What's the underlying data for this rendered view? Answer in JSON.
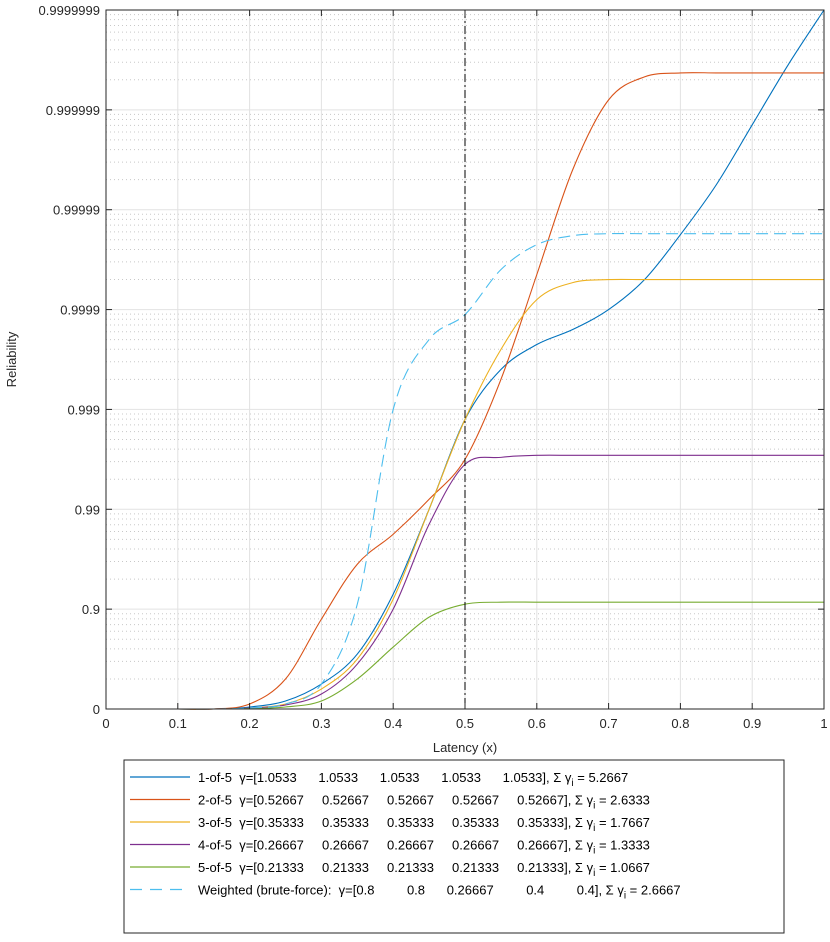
{
  "chart_data": {
    "type": "line",
    "title": "",
    "xlabel": "Latency (x)",
    "ylabel": "Reliability",
    "xlim": [
      0,
      1
    ],
    "y_scale": "nines (-log10(1 - reliability))",
    "ylim_nines": [
      0,
      7
    ],
    "x_ticks": [
      "0",
      "0.1",
      "0.2",
      "0.3",
      "0.4",
      "0.5",
      "0.6",
      "0.7",
      "0.8",
      "0.9",
      "1"
    ],
    "y_ticks": [
      {
        "nines": 0,
        "label": "0"
      },
      {
        "nines": 1,
        "label": "0.9"
      },
      {
        "nines": 2,
        "label": "0.99"
      },
      {
        "nines": 3,
        "label": "0.999"
      },
      {
        "nines": 4,
        "label": "0.9999"
      },
      {
        "nines": 5,
        "label": "0.99999"
      },
      {
        "nines": 6,
        "label": "0.999999"
      },
      {
        "nines": 7,
        "label": "0.9999999"
      }
    ],
    "grid": true,
    "vertical_line": {
      "x": 0.5,
      "style": "dash-dot",
      "color": "#000000"
    },
    "legend_position": "below",
    "x": [
      0,
      0.05,
      0.1,
      0.15,
      0.2,
      0.25,
      0.3,
      0.35,
      0.4,
      0.45,
      0.5,
      0.55,
      0.6,
      0.65,
      0.7,
      0.75,
      0.8,
      0.85,
      0.9,
      0.95,
      1.0
    ],
    "series": [
      {
        "name": "1-of-5",
        "legend_gamma": "γ=[1.0533      1.0533      1.0533      1.0533      1.0533], Σ γ",
        "legend_sum": " = 5.2667",
        "color": "#0072BD",
        "dash": false,
        "values_nines": [
          0,
          0,
          0,
          0,
          0.02,
          0.08,
          0.25,
          0.55,
          1.15,
          2.0,
          2.9,
          3.4,
          3.65,
          3.8,
          4.0,
          4.3,
          4.75,
          5.25,
          5.85,
          6.45,
          7.0
        ]
      },
      {
        "name": "2-of-5",
        "legend_gamma": "γ=[0.52667     0.52667     0.52667     0.52667     0.52667], Σ γ",
        "legend_sum": " = 2.6333",
        "color": "#D95319",
        "dash": false,
        "values_nines": [
          0,
          0,
          0,
          0,
          0.05,
          0.3,
          0.9,
          1.45,
          1.75,
          2.1,
          2.5,
          3.3,
          4.35,
          5.4,
          6.1,
          6.33,
          6.37,
          6.37,
          6.37,
          6.37,
          6.37
        ]
      },
      {
        "name": "3-of-5",
        "legend_gamma": "γ=[0.35333     0.35333     0.35333     0.35333     0.35333], Σ γ",
        "legend_sum": " = 1.7667",
        "color": "#EDB120",
        "dash": false,
        "values_nines": [
          0,
          0,
          0,
          0,
          0.01,
          0.05,
          0.2,
          0.5,
          1.1,
          2.0,
          2.9,
          3.6,
          4.1,
          4.27,
          4.3,
          4.3,
          4.3,
          4.3,
          4.3,
          4.3,
          4.3
        ]
      },
      {
        "name": "4-of-5",
        "legend_gamma": "γ=[0.26667     0.26667     0.26667     0.26667     0.26667], Σ γ",
        "legend_sum": " = 1.3333",
        "color": "#7E2F8E",
        "dash": false,
        "values_nines": [
          0,
          0,
          0,
          0,
          0.01,
          0.04,
          0.15,
          0.45,
          1.0,
          1.85,
          2.45,
          2.52,
          2.54,
          2.54,
          2.54,
          2.54,
          2.54,
          2.54,
          2.54,
          2.54,
          2.54
        ]
      },
      {
        "name": "5-of-5",
        "legend_gamma": "γ=[0.21333     0.21333     0.21333     0.21333     0.21333], Σ γ",
        "legend_sum": " = 1.0667",
        "color": "#77AC30",
        "dash": false,
        "values_nines": [
          0,
          0,
          0,
          0,
          0.005,
          0.02,
          0.08,
          0.3,
          0.62,
          0.92,
          1.05,
          1.07,
          1.07,
          1.07,
          1.07,
          1.07,
          1.07,
          1.07,
          1.07,
          1.07,
          1.07
        ]
      },
      {
        "name": "Weighted (brute-force):",
        "legend_gamma": "γ=[0.8         0.8      0.26667         0.4         0.4], Σ γ",
        "legend_sum": " = 2.6667",
        "color": "#4DBEEE",
        "dash": true,
        "values_nines": [
          0,
          0,
          0,
          0,
          0.01,
          0.05,
          0.25,
          1.05,
          3.0,
          3.7,
          3.95,
          4.4,
          4.65,
          4.74,
          4.76,
          4.76,
          4.76,
          4.76,
          4.76,
          4.76,
          4.76
        ]
      }
    ],
    "legend_subscript": "i"
  }
}
